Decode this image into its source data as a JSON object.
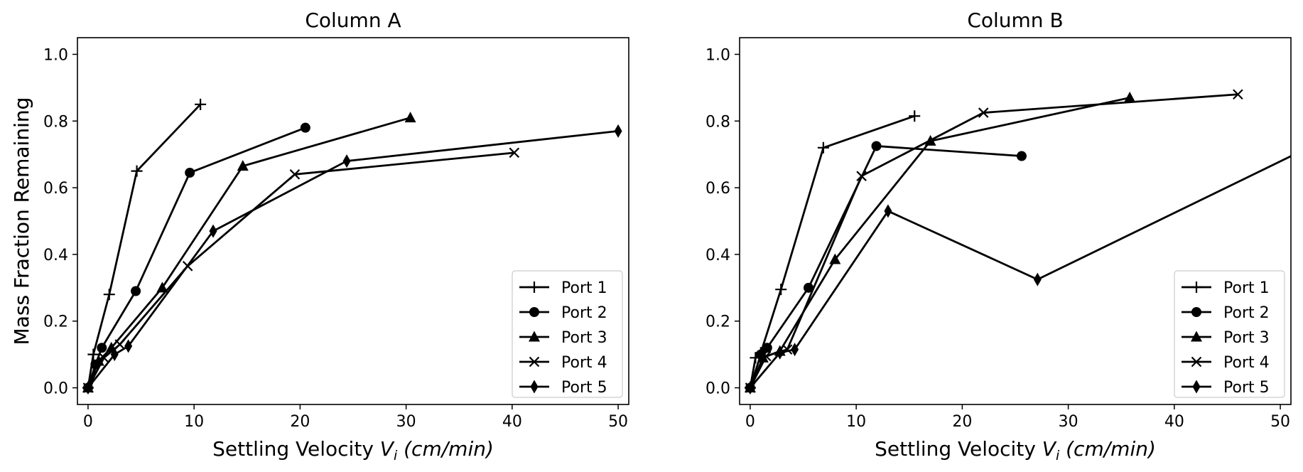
{
  "chart_data": [
    {
      "type": "line",
      "title": "Column A",
      "xlabel": "Settling Velocity V_i (cm/min)",
      "ylabel": "Mass Fraction Remaining",
      "xlim": [
        -1,
        51
      ],
      "ylim": [
        -0.05,
        1.05
      ],
      "x_ticks": [
        "0",
        "10",
        "20",
        "30",
        "40",
        "50"
      ],
      "y_ticks": [
        "0.0",
        "0.2",
        "0.4",
        "0.6",
        "0.8",
        "1.0"
      ],
      "grid": false,
      "legend_position": "lower right",
      "series": [
        {
          "name": "Port 1",
          "marker": "plus",
          "x": [
            0,
            0.5,
            2.0,
            4.6,
            10.6
          ],
          "y": [
            0.0,
            0.1,
            0.28,
            0.65,
            0.85
          ]
        },
        {
          "name": "Port 2",
          "marker": "circle",
          "x": [
            0,
            0.7,
            1.3,
            4.5,
            9.6,
            20.5
          ],
          "y": [
            0.0,
            0.07,
            0.12,
            0.29,
            0.645,
            0.78
          ]
        },
        {
          "name": "Port 3",
          "marker": "triangle",
          "x": [
            0,
            1.0,
            2.2,
            7.0,
            14.6,
            30.4
          ],
          "y": [
            0.0,
            0.08,
            0.12,
            0.3,
            0.665,
            0.81
          ]
        },
        {
          "name": "Port 4",
          "marker": "x",
          "x": [
            0,
            1.5,
            3.0,
            9.4,
            19.5,
            40.2
          ],
          "y": [
            0.0,
            0.09,
            0.13,
            0.365,
            0.64,
            0.705
          ]
        },
        {
          "name": "Port 5",
          "marker": "diamond",
          "x": [
            0,
            2.5,
            3.8,
            11.8,
            24.4,
            50.0
          ],
          "y": [
            0.0,
            0.1,
            0.125,
            0.47,
            0.68,
            0.77
          ]
        }
      ]
    },
    {
      "type": "line",
      "title": "Column B",
      "xlabel": "Settling Velocity V_i (cm/min)",
      "ylabel": "Mass Fraction Remaining",
      "xlim": [
        -1,
        51
      ],
      "ylim": [
        -0.05,
        1.05
      ],
      "x_ticks": [
        "0",
        "10",
        "20",
        "30",
        "40",
        "50"
      ],
      "y_ticks": [
        "0.0",
        "0.2",
        "0.4",
        "0.6",
        "0.8",
        "1.0"
      ],
      "grid": false,
      "legend_position": "lower right",
      "series": [
        {
          "name": "Port 1",
          "marker": "plus",
          "x": [
            0,
            0.5,
            1.0,
            2.9,
            6.9,
            15.5
          ],
          "y": [
            0.0,
            0.09,
            0.105,
            0.295,
            0.72,
            0.815
          ]
        },
        {
          "name": "Port 2",
          "marker": "circle",
          "x": [
            0,
            1.0,
            1.6,
            5.5,
            11.9,
            25.6
          ],
          "y": [
            0.0,
            0.1,
            0.12,
            0.3,
            0.725,
            0.695
          ]
        },
        {
          "name": "Port 3",
          "marker": "triangle",
          "x": [
            0,
            1.2,
            2.8,
            8.0,
            17.0,
            35.8
          ],
          "y": [
            0.0,
            0.09,
            0.11,
            0.385,
            0.74,
            0.87
          ]
        },
        {
          "name": "Port 4",
          "marker": "x",
          "x": [
            0,
            1.5,
            3.5,
            10.5,
            22.0,
            46.0
          ],
          "y": [
            0.0,
            0.095,
            0.115,
            0.635,
            0.825,
            0.88
          ]
        },
        {
          "name": "Port 5",
          "marker": "diamond",
          "x": [
            0,
            2.8,
            4.2,
            13.0,
            27.1,
            52.0
          ],
          "y": [
            0.0,
            0.105,
            0.115,
            0.53,
            0.325,
            0.71
          ]
        }
      ]
    }
  ]
}
